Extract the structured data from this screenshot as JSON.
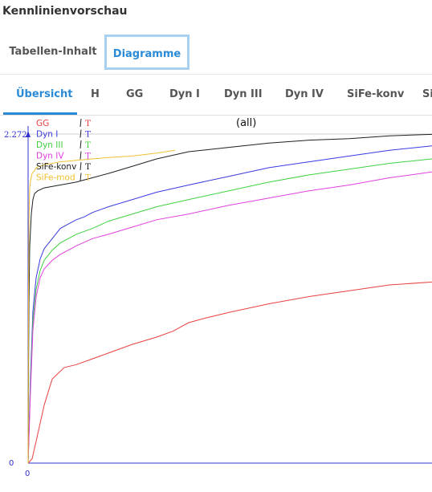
{
  "window": {
    "title": "Kennlinienvorschau"
  },
  "top_tabs": [
    {
      "label": "Tabellen-Inhalt",
      "active": false
    },
    {
      "label": "Diagramme",
      "active": true
    }
  ],
  "sub_tabs": [
    {
      "label": "Übersicht",
      "active": true
    },
    {
      "label": "H",
      "active": false
    },
    {
      "label": "GG",
      "active": false
    },
    {
      "label": "Dyn I",
      "active": false
    },
    {
      "label": "Dyn III",
      "active": false
    },
    {
      "label": "Dyn IV",
      "active": false
    },
    {
      "label": "SiFe-konv",
      "active": false
    },
    {
      "label": "Si",
      "active": false
    }
  ],
  "chart_data": {
    "type": "line",
    "title": "(all)",
    "xlabel": "",
    "ylabel": "",
    "x_tick_labels": [
      "0"
    ],
    "y_tick_labels": [
      "0",
      "2.272"
    ],
    "ylim": [
      0,
      2.272
    ],
    "grid": false,
    "legend_placement": "top-left",
    "legend_marker": "T",
    "series": [
      {
        "name": "GG",
        "color": "#e84040",
        "x": [
          0,
          5,
          10,
          20,
          30,
          45,
          60,
          80,
          100,
          130,
          160,
          180,
          200,
          220,
          250,
          300,
          350,
          400,
          450,
          503
        ],
        "y": [
          0,
          0.03,
          0.15,
          0.4,
          0.58,
          0.66,
          0.68,
          0.72,
          0.76,
          0.82,
          0.87,
          0.91,
          0.97,
          1.0,
          1.04,
          1.1,
          1.15,
          1.19,
          1.23,
          1.25
        ]
      },
      {
        "name": "Dyn I",
        "color": "#3a3ae0",
        "x": [
          0,
          3,
          6,
          10,
          15,
          20,
          30,
          40,
          50,
          60,
          70,
          80,
          100,
          130,
          160,
          200,
          250,
          300,
          350,
          400,
          450,
          503
        ],
        "y": [
          0,
          0.6,
          1.05,
          1.28,
          1.41,
          1.48,
          1.55,
          1.62,
          1.65,
          1.68,
          1.7,
          1.73,
          1.77,
          1.82,
          1.87,
          1.92,
          1.98,
          2.04,
          2.08,
          2.12,
          2.16,
          2.19
        ]
      },
      {
        "name": "Dyn III",
        "color": "#40d040",
        "x": [
          0,
          3,
          6,
          10,
          15,
          20,
          30,
          40,
          50,
          60,
          80,
          100,
          130,
          160,
          200,
          250,
          300,
          350,
          400,
          450,
          503
        ],
        "y": [
          0,
          0.55,
          0.98,
          1.2,
          1.33,
          1.4,
          1.47,
          1.52,
          1.55,
          1.58,
          1.62,
          1.67,
          1.72,
          1.77,
          1.82,
          1.88,
          1.94,
          1.99,
          2.03,
          2.07,
          2.1
        ]
      },
      {
        "name": "Dyn IV",
        "color": "#e040e0",
        "x": [
          0,
          3,
          6,
          10,
          15,
          20,
          30,
          40,
          50,
          60,
          80,
          100,
          130,
          160,
          200,
          250,
          300,
          350,
          400,
          450,
          503
        ],
        "y": [
          0,
          0.5,
          0.92,
          1.15,
          1.28,
          1.34,
          1.4,
          1.44,
          1.47,
          1.5,
          1.55,
          1.58,
          1.63,
          1.68,
          1.72,
          1.78,
          1.83,
          1.88,
          1.92,
          1.97,
          2.01
        ]
      },
      {
        "name": "SiFe-konv",
        "color": "#202020",
        "x": [
          0,
          1,
          2,
          4,
          6,
          8,
          12,
          20,
          40,
          60,
          80,
          100,
          130,
          160,
          200,
          250,
          300,
          350,
          400,
          450,
          503
        ],
        "y": [
          0,
          1.1,
          1.5,
          1.72,
          1.82,
          1.86,
          1.88,
          1.9,
          1.92,
          1.94,
          1.97,
          2.0,
          2.05,
          2.1,
          2.15,
          2.18,
          2.21,
          2.23,
          2.24,
          2.26,
          2.27
        ]
      },
      {
        "name": "SiFe-mod",
        "color": "#f0c030",
        "x": [
          0,
          0.5,
          1,
          1.5,
          2,
          3,
          5,
          8,
          10,
          20,
          40,
          60,
          80,
          100,
          130,
          160,
          183
        ],
        "y": [
          0,
          1.2,
          1.6,
          1.8,
          1.9,
          1.95,
          2.0,
          2.02,
          2.04,
          2.06,
          2.08,
          2.09,
          2.1,
          2.11,
          2.12,
          2.14,
          2.16
        ]
      }
    ]
  }
}
